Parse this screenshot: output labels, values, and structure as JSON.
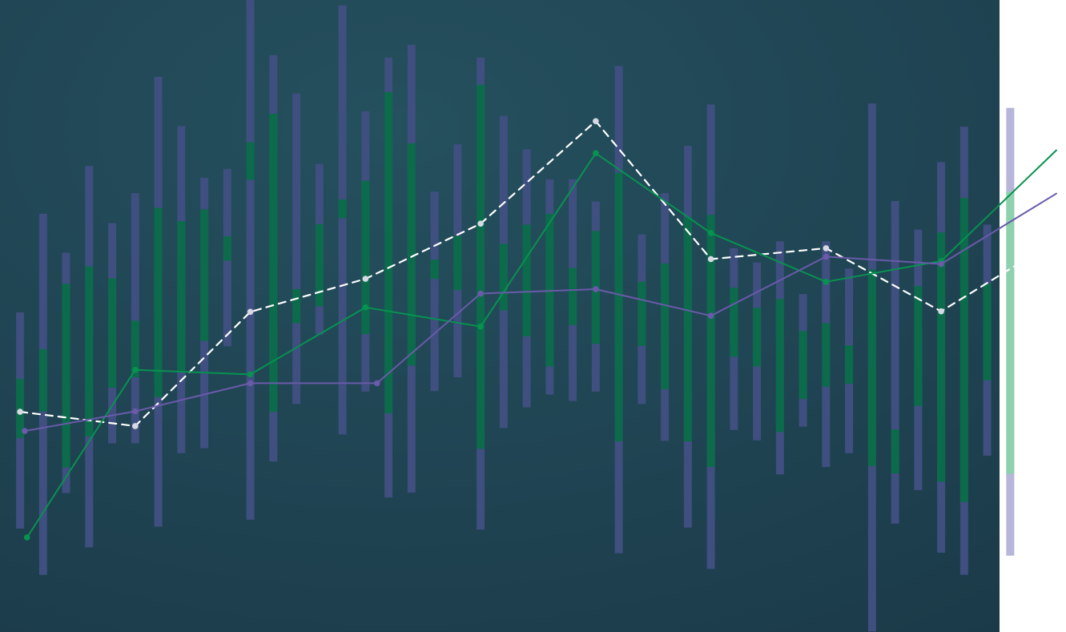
{
  "chart_data": {
    "type": "line",
    "title": "",
    "xlabel": "",
    "ylabel": "",
    "grid": false,
    "legend": "none",
    "colors": {
      "background_from": "#25505e",
      "background_to": "#1b3a49",
      "bar": "#3f4f7f",
      "bar_highlight": "#0b6b4b",
      "bar_light": "#b7b5da",
      "bar_light_highlight": "#8ed1ad",
      "series_dashed": "#ffffff",
      "series_green": "#079250",
      "series_purple": "#6a5aa9"
    },
    "bars": [
      {
        "x": 1,
        "low": 19.9,
        "high": 63.8,
        "hi_low": 38.3,
        "hi_high": 50.3
      },
      {
        "x": 2,
        "low": 10.5,
        "high": 83.8,
        "hi_low": 43.7,
        "hi_high": 56.3
      },
      {
        "x": 3,
        "low": 27.1,
        "high": 75.9,
        "hi_low": 32.3,
        "hi_high": 69.6
      },
      {
        "x": 4,
        "low": 16.1,
        "high": 93.5,
        "hi_low": 38.6,
        "hi_high": 73.1
      },
      {
        "x": 5,
        "low": 37.2,
        "high": 81.9,
        "hi_low": 48.5,
        "hi_high": 70.7
      },
      {
        "x": 6,
        "low": 37.2,
        "high": 88.0,
        "hi_low": 50.6,
        "hi_high": 62.1
      },
      {
        "x": 7,
        "low": 20.3,
        "high": 111.6,
        "hi_low": 46.6,
        "hi_high": 85.0
      },
      {
        "x": 8,
        "low": 35.2,
        "high": 101.6,
        "hi_low": 51.9,
        "hi_high": 82.3
      },
      {
        "x": 9,
        "low": 36.2,
        "high": 91.1,
        "hi_low": 58.0,
        "hi_high": 84.7
      },
      {
        "x": 10,
        "low": 56.9,
        "high": 92.9,
        "hi_low": 74.3,
        "hi_high": 79.2
      },
      {
        "x": 11,
        "low": 21.7,
        "high": 127.5,
        "hi_low": 90.7,
        "hi_high": 98.3
      },
      {
        "x": 12,
        "low": 33.5,
        "high": 116.0,
        "hi_low": 43.6,
        "hi_high": 104.1
      },
      {
        "x": 13,
        "low": 45.2,
        "high": 108.2,
        "hi_low": 61.6,
        "hi_high": 68.5
      },
      {
        "x": 14,
        "low": 59.3,
        "high": 93.9,
        "hi_low": 65.0,
        "hi_high": 81.7
      },
      {
        "x": 15,
        "low": 39.0,
        "high": 126.1,
        "hi_low": 82.9,
        "hi_high": 86.7
      },
      {
        "x": 16,
        "low": 47.7,
        "high": 104.6,
        "hi_low": 59.4,
        "hi_high": 90.5
      },
      {
        "x": 17,
        "low": 26.2,
        "high": 115.5,
        "hi_low": 43.3,
        "hi_high": 108.5
      },
      {
        "x": 18,
        "low": 27.2,
        "high": 118.1,
        "hi_low": 53.0,
        "hi_high": 98.1
      },
      {
        "x": 19,
        "low": 47.8,
        "high": 88.3,
        "hi_low": 70.6,
        "hi_high": 74.5
      },
      {
        "x": 20,
        "low": 50.6,
        "high": 97.9,
        "hi_low": 68.3,
        "hi_high": 79.3
      },
      {
        "x": 21,
        "low": 19.7,
        "high": 115.5,
        "hi_low": 36.1,
        "hi_high": 110.0
      },
      {
        "x": 22,
        "low": 40.3,
        "high": 103.7,
        "hi_low": 64.2,
        "hi_high": 77.7
      },
      {
        "x": 23,
        "low": 44.5,
        "high": 96.9,
        "hi_low": 58.9,
        "hi_high": 81.6
      },
      {
        "x": 24,
        "low": 47.1,
        "high": 90.8,
        "hi_low": 52.8,
        "hi_high": 83.8
      },
      {
        "x": 25,
        "low": 45.8,
        "high": 90.8,
        "hi_low": 61.2,
        "hi_high": 72.8
      },
      {
        "x": 26,
        "low": 47.7,
        "high": 86.3,
        "hi_low": 57.4,
        "hi_high": 80.3
      },
      {
        "x": 27,
        "low": 14.9,
        "high": 113.8,
        "hi_low": 37.6,
        "hi_high": 92.1
      },
      {
        "x": 28,
        "low": 45.2,
        "high": 79.6,
        "hi_low": 57.0,
        "hi_high": 70.0
      },
      {
        "x": 29,
        "low": 37.7,
        "high": 88.0,
        "hi_low": 48.2,
        "hi_high": 73.7
      },
      {
        "x": 30,
        "low": 20.1,
        "high": 97.6,
        "hi_low": 37.6,
        "hi_high": 83.1
      },
      {
        "x": 31,
        "low": 11.7,
        "high": 106.0,
        "hi_low": 32.4,
        "hi_high": 83.6
      },
      {
        "x": 32,
        "low": 39.9,
        "high": 76.8,
        "hi_low": 54.8,
        "hi_high": 68.8
      },
      {
        "x": 33,
        "low": 37.8,
        "high": 73.9,
        "hi_low": 52.8,
        "hi_high": 64.7
      },
      {
        "x": 34,
        "low": 30.9,
        "high": 78.2,
        "hi_low": 39.5,
        "hi_high": 66.5
      },
      {
        "x": 35,
        "low": 40.6,
        "high": 67.5,
        "hi_low": 46.2,
        "hi_high": 60.0
      },
      {
        "x": 36,
        "low": 32.4,
        "high": 78.2,
        "hi_low": 48.7,
        "hi_high": 61.6
      },
      {
        "x": 37,
        "low": 35.2,
        "high": 72.7,
        "hi_low": 49.3,
        "hi_high": 57.1
      },
      {
        "x": 38,
        "low": -1.0,
        "high": 106.2,
        "hi_low": 32.6,
        "hi_high": 72.5
      },
      {
        "x": 39,
        "low": 20.9,
        "high": 86.4,
        "hi_low": 31.1,
        "hi_high": 40.0
      },
      {
        "x": 40,
        "low": 27.7,
        "high": 80.6,
        "hi_low": 44.8,
        "hi_high": 69.1
      },
      {
        "x": 41,
        "low": 15.0,
        "high": 94.3,
        "hi_low": 29.4,
        "hi_high": 80.0
      },
      {
        "x": 42,
        "low": 10.5,
        "high": 101.5,
        "hi_low": 25.3,
        "hi_high": 87.0
      },
      {
        "x": 43,
        "low": 34.7,
        "high": 81.6,
        "hi_low": 50.0,
        "hi_high": 69.6
      },
      {
        "x": 44,
        "low": 14.4,
        "high": 105.3,
        "hi_low": 31.0,
        "hi_high": 88.3
      }
    ],
    "series": [
      {
        "style": "dashed",
        "x": [
          1,
          6,
          11,
          16,
          21,
          26,
          31,
          36,
          41,
          46
        ],
        "y": [
          43.6,
          40.7,
          63.9,
          70.6,
          81.8,
          102.6,
          74.6,
          76.8,
          64.0,
          78.4
        ]
      },
      {
        "style": "solid-green",
        "x": [
          1.3,
          6,
          11,
          16,
          21,
          26,
          31,
          36,
          41,
          46
        ],
        "y": [
          18.1,
          52.1,
          51.2,
          64.8,
          60.9,
          96.1,
          79.9,
          70.0,
          74.2,
          96.7
        ]
      },
      {
        "style": "solid-purple",
        "x": [
          1.2,
          6,
          11,
          16.5,
          21,
          26,
          31,
          36,
          41,
          46
        ],
        "y": [
          39.7,
          43.7,
          49.4,
          49.4,
          67.6,
          68.5,
          63.1,
          75.1,
          73.6,
          87.9
        ]
      }
    ],
    "xlim": [
      0.65,
      45.9
    ],
    "ylim": [
      -1.1,
      127.2
    ]
  }
}
